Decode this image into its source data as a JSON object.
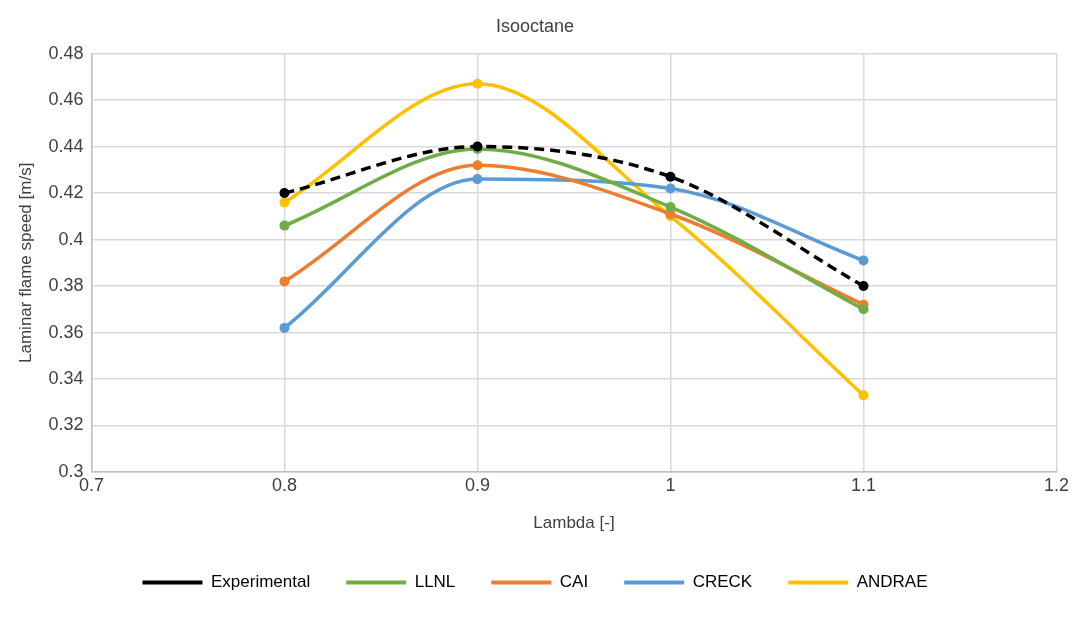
{
  "chart_data": {
    "type": "line",
    "title": "Isooctane",
    "xlabel": "Lambda [-]",
    "ylabel": "Laminar flame speed [m/s]",
    "x": [
      0.8,
      0.9,
      1,
      1.1
    ],
    "series": [
      {
        "name": "Experimental",
        "color": "#000000",
        "line_style": "dashed",
        "values": [
          0.42,
          0.44,
          0.427,
          0.38
        ]
      },
      {
        "name": "LLNL",
        "color": "#70ad47",
        "values": [
          0.406,
          0.439,
          0.414,
          0.37
        ]
      },
      {
        "name": "CAI",
        "color": "#ed7d31",
        "values": [
          0.382,
          0.432,
          0.411,
          0.372
        ]
      },
      {
        "name": "CRECK",
        "color": "#5b9bd5",
        "values": [
          0.362,
          0.426,
          0.422,
          0.391
        ]
      },
      {
        "name": "ANDRAE",
        "color": "#ffc000",
        "values": [
          0.416,
          0.467,
          0.41,
          0.333
        ]
      }
    ],
    "xlim": [
      0.7,
      1.2
    ],
    "xticks": [
      0.7,
      0.8,
      0.9,
      1,
      1.1,
      1.2
    ],
    "ylim": [
      0.3,
      0.48
    ],
    "yticks": [
      0.3,
      0.32,
      0.34,
      0.36,
      0.38,
      0.4,
      0.42,
      0.44,
      0.46,
      0.48
    ],
    "grid": true,
    "legend": "bottom",
    "marker": "circle",
    "line_style": "solid"
  }
}
